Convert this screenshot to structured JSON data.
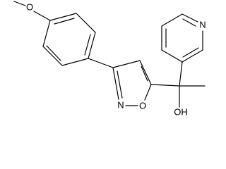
{
  "atoms": {
    "methoxy_o": "O",
    "pyridine_n": "N",
    "isoxazole_n": "N",
    "isoxazole_o": "O",
    "hydroxyl": "OH"
  }
}
